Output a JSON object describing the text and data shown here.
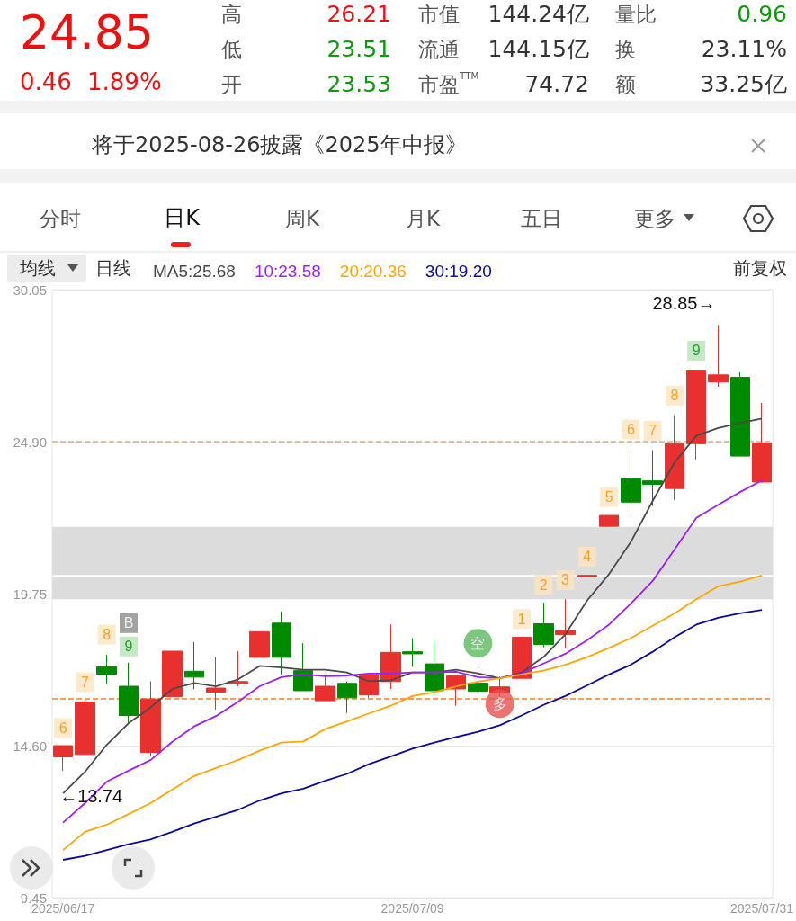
{
  "chart_data": {
    "type": "candlestick",
    "categories": [
      "2025/06/17",
      null,
      null,
      null,
      null,
      null,
      null,
      null,
      null,
      null,
      null,
      null,
      null,
      null,
      null,
      null,
      "2025/07/09",
      null,
      null,
      null,
      null,
      null,
      null,
      null,
      null,
      null,
      null,
      null,
      null,
      null,
      null,
      null,
      "2025/07/31"
    ],
    "ohlc": [
      [
        14.22,
        14.6,
        13.74,
        14.6
      ],
      [
        14.3,
        16.15,
        14.3,
        16.08
      ],
      [
        17.27,
        17.67,
        16.71,
        17.01
      ],
      [
        16.61,
        17.41,
        15.36,
        15.62
      ],
      [
        14.37,
        16.78,
        14.23,
        16.18
      ],
      [
        16.26,
        17.8,
        16.26,
        17.8
      ],
      [
        17.12,
        18.11,
        16.51,
        16.92
      ],
      [
        16.41,
        17.6,
        15.82,
        16.55
      ],
      [
        16.71,
        17.8,
        16.61,
        16.77
      ],
      [
        17.59,
        18.46,
        17.59,
        18.46
      ],
      [
        18.75,
        19.15,
        17.01,
        17.59
      ],
      [
        17.14,
        18.07,
        16.46,
        16.46
      ],
      [
        16.12,
        17.01,
        16.12,
        16.61
      ],
      [
        16.71,
        16.77,
        15.71,
        16.22
      ],
      [
        16.32,
        17.01,
        16.22,
        17.01
      ],
      [
        16.77,
        18.7,
        16.52,
        17.76
      ],
      [
        17.78,
        18.24,
        17.27,
        17.71
      ],
      [
        17.37,
        18.16,
        16.32,
        16.46
      ],
      [
        16.52,
        16.97,
        15.95,
        16.97
      ],
      [
        16.72,
        17.27,
        16.22,
        16.44
      ],
      [
        16.39,
        16.94,
        16.02,
        16.59
      ],
      [
        16.88,
        18.27,
        16.88,
        18.27
      ],
      [
        18.73,
        19.45,
        17.93,
        18.03
      ],
      [
        18.36,
        19.56,
        17.91,
        18.5
      ],
      [
        20.33,
        20.38,
        20.33,
        20.37
      ],
      [
        22.03,
        22.4,
        22.03,
        22.4
      ],
      [
        23.64,
        24.64,
        22.36,
        22.85
      ],
      [
        23.57,
        24.61,
        22.72,
        23.45
      ],
      [
        23.31,
        25.8,
        22.93,
        24.83
      ],
      [
        24.83,
        27.32,
        24.28,
        27.32
      ],
      [
        26.92,
        28.85,
        26.76,
        27.16
      ],
      [
        27.08,
        27.25,
        24.41,
        24.41
      ],
      [
        23.53,
        26.21,
        23.51,
        24.85
      ]
    ],
    "colors": [
      "#e8312f",
      "#e8312f",
      "#008a00",
      "#008a00",
      "#e8312f",
      "#e8312f",
      "#008a00",
      "#e8312f",
      "#e8312f",
      "#e8312f",
      "#008a00",
      "#008a00",
      "#e8312f",
      "#008a00",
      "#e8312f",
      "#e8312f",
      "#008a00",
      "#008a00",
      "#e8312f",
      "#008a00",
      "#e8312f",
      "#e8312f",
      "#008a00",
      "#e8312f",
      "#e8312f",
      "#e8312f",
      "#008a00",
      "#008a00",
      "#e8312f",
      "#e8312f",
      "#e8312f",
      "#008a00",
      "#e8312f"
    ],
    "series": [
      {
        "type": "line",
        "name": "MA5:25.68",
        "color": "#4a4a4a",
        "marker": "none",
        "values": [
          12.98,
          13.71,
          14.63,
          15.36,
          15.89,
          16.52,
          16.72,
          16.61,
          16.84,
          17.3,
          17.25,
          17.17,
          17.17,
          17.08,
          16.78,
          16.81,
          17.08,
          17.08,
          17.17,
          17.05,
          16.88,
          17.08,
          17.6,
          18.37,
          19.52,
          20.41,
          21.5,
          22.89,
          24.19,
          25.1,
          25.36,
          25.53,
          25.68
        ]
      },
      {
        "type": "line",
        "name": "10:23.58",
        "color": "#9b1fff",
        "marker": "none",
        "values": [
          11.99,
          12.65,
          13.38,
          13.75,
          14.11,
          14.73,
          15.25,
          15.6,
          16.08,
          16.61,
          16.92,
          17.01,
          16.95,
          16.97,
          17.04,
          17.04,
          17.08,
          17.08,
          17.1,
          16.92,
          16.88,
          17.05,
          17.38,
          17.71,
          18.17,
          18.7,
          19.41,
          20.18,
          21.24,
          22.32,
          22.76,
          23.19,
          23.58
        ]
      },
      {
        "type": "line",
        "name": "20:20.36",
        "color": "#ffa500",
        "marker": "none",
        "values": [
          11.06,
          11.68,
          11.92,
          12.28,
          12.65,
          13.11,
          13.57,
          13.84,
          14.11,
          14.43,
          14.7,
          14.74,
          15.16,
          15.42,
          15.69,
          15.95,
          16.28,
          16.41,
          16.61,
          16.77,
          16.88,
          17.01,
          17.14,
          17.34,
          17.6,
          17.91,
          18.24,
          18.66,
          19.08,
          19.56,
          20.0,
          20.16,
          20.36
        ]
      },
      {
        "type": "line",
        "name": "30:19.20",
        "color": "#0a0a9a",
        "marker": "none",
        "values": [
          10.73,
          10.86,
          11.06,
          11.26,
          11.42,
          11.68,
          11.96,
          12.19,
          12.42,
          12.74,
          12.98,
          13.14,
          13.41,
          13.64,
          13.97,
          14.23,
          14.5,
          14.7,
          14.89,
          15.07,
          15.29,
          15.62,
          15.98,
          16.28,
          16.64,
          17.01,
          17.34,
          17.78,
          18.27,
          18.7,
          18.93,
          19.08,
          19.2
        ]
      },
      {
        "type": "scatter",
        "name": "6",
        "color": "#fde3bf",
        "marker": "square",
        "values": [
          15.2,
          null,
          null,
          null,
          null,
          null,
          null,
          null,
          null,
          null,
          null,
          null,
          null,
          null,
          null,
          null,
          null,
          null,
          null,
          null,
          null,
          null,
          null,
          null,
          null,
          null,
          25.31,
          null,
          null,
          null,
          null,
          null,
          null
        ]
      },
      {
        "type": "scatter",
        "name": "7",
        "color": "#fde3bf",
        "marker": "square",
        "values": [
          null,
          16.75,
          null,
          null,
          null,
          null,
          null,
          null,
          null,
          null,
          null,
          null,
          null,
          null,
          null,
          null,
          null,
          null,
          null,
          null,
          null,
          null,
          null,
          null,
          null,
          null,
          null,
          25.27,
          null,
          null,
          null,
          null,
          null
        ]
      },
      {
        "type": "scatter",
        "name": "8",
        "color": "#fde3bf",
        "marker": "square",
        "values": [
          null,
          null,
          18.36,
          null,
          null,
          null,
          null,
          null,
          null,
          null,
          null,
          null,
          null,
          null,
          null,
          null,
          null,
          null,
          null,
          null,
          null,
          null,
          null,
          null,
          null,
          null,
          null,
          null,
          26.46,
          null,
          null,
          null,
          null
        ]
      },
      {
        "type": "scatter",
        "name": "1",
        "color": "#fde3bf",
        "marker": "square",
        "values": [
          null,
          null,
          null,
          null,
          null,
          null,
          null,
          null,
          null,
          null,
          null,
          null,
          null,
          null,
          null,
          null,
          null,
          null,
          null,
          null,
          null,
          18.89,
          null,
          null,
          null,
          null,
          null,
          null,
          null,
          null,
          null,
          null,
          null
        ]
      },
      {
        "type": "scatter",
        "name": "2",
        "color": "#fde3bf",
        "marker": "square",
        "values": [
          null,
          null,
          null,
          null,
          null,
          null,
          null,
          null,
          null,
          null,
          null,
          null,
          null,
          null,
          null,
          null,
          null,
          null,
          null,
          null,
          null,
          null,
          20.05,
          null,
          null,
          null,
          null,
          null,
          null,
          null,
          null,
          null,
          null
        ]
      },
      {
        "type": "scatter",
        "name": "3",
        "color": "#fde3bf",
        "marker": "square",
        "values": [
          null,
          null,
          null,
          null,
          null,
          null,
          null,
          null,
          null,
          null,
          null,
          null,
          null,
          null,
          null,
          null,
          null,
          null,
          null,
          null,
          null,
          null,
          null,
          20.21,
          null,
          null,
          null,
          null,
          null,
          null,
          null,
          null,
          null
        ]
      },
      {
        "type": "scatter",
        "name": "4",
        "color": "#fde3bf",
        "marker": "square",
        "values": [
          null,
          null,
          null,
          null,
          null,
          null,
          null,
          null,
          null,
          null,
          null,
          null,
          null,
          null,
          null,
          null,
          null,
          null,
          null,
          null,
          null,
          null,
          null,
          null,
          21.0,
          null,
          null,
          null,
          null,
          null,
          null,
          null,
          null
        ]
      },
      {
        "type": "scatter",
        "name": "5",
        "color": "#fde3bf",
        "marker": "square",
        "values": [
          null,
          null,
          null,
          null,
          null,
          null,
          null,
          null,
          null,
          null,
          null,
          null,
          null,
          null,
          null,
          null,
          null,
          null,
          null,
          null,
          null,
          null,
          null,
          null,
          null,
          23.02,
          null,
          null,
          null,
          null,
          null,
          null,
          null
        ]
      },
      {
        "type": "scatter",
        "name": "9",
        "color": "#b9e2b9",
        "marker": "square",
        "values": [
          null,
          null,
          null,
          17.96,
          null,
          null,
          null,
          null,
          null,
          null,
          null,
          null,
          null,
          null,
          null,
          null,
          null,
          null,
          null,
          null,
          null,
          null,
          null,
          null,
          null,
          null,
          null,
          null,
          null,
          27.98,
          null,
          null,
          null
        ]
      },
      {
        "type": "scatter",
        "name": "B",
        "color": "#8c8c8c",
        "marker": "square",
        "values": [
          null,
          null,
          null,
          18.75,
          null,
          null,
          null,
          null,
          null,
          null,
          null,
          null,
          null,
          null,
          null,
          null,
          null,
          null,
          null,
          null,
          null,
          null,
          null,
          null,
          null,
          null,
          null,
          null,
          null,
          null,
          null,
          null,
          null
        ]
      },
      {
        "type": "scatter",
        "name": "空",
        "color": "#5cb85c",
        "marker": "circle",
        "values": [
          null,
          null,
          null,
          null,
          null,
          null,
          null,
          null,
          null,
          null,
          null,
          null,
          null,
          null,
          null,
          null,
          null,
          null,
          null,
          18.07,
          null,
          null,
          null,
          null,
          null,
          null,
          null,
          null,
          null,
          null,
          null,
          null,
          null
        ]
      },
      {
        "type": "scatter",
        "name": "多",
        "color": "#e85050",
        "marker": "circle",
        "values": [
          null,
          null,
          null,
          null,
          null,
          null,
          null,
          null,
          null,
          null,
          null,
          null,
          null,
          null,
          null,
          null,
          null,
          null,
          null,
          null,
          16.02,
          null,
          null,
          null,
          null,
          null,
          null,
          null,
          null,
          null,
          null,
          null,
          null
        ]
      }
    ],
    "ylim": [
      9.45,
      30.05
    ],
    "yticks": [
      9.45,
      {
        "value": 14.6,
        "label": "14.60"
      },
      19.75,
      {
        "value": 24.9,
        "label": "24.90"
      },
      30.05
    ],
    "grid": "y",
    "legend": "top left",
    "ref_lines": [
      {
        "axis": "y",
        "value": 24.9,
        "color": "#d2b48c",
        "line_style": "dashed"
      },
      {
        "axis": "y",
        "value": 16.18,
        "color": "#ff7f1e",
        "line_style": "dashed"
      }
    ],
    "bands": [
      {
        "axis": "y",
        "from": 20.38,
        "to": 22.01,
        "color": "#dcdcdc"
      },
      {
        "axis": "y",
        "from": 19.56,
        "to": 20.31,
        "color": "#dcdcdc"
      }
    ],
    "annotations": [
      "24.85",
      "0.46",
      "1.89%",
      "高",
      "26.21",
      "低",
      "23.51",
      "开",
      "23.53",
      "市值",
      "144.24亿",
      "流通",
      "144.15亿",
      "市盈$^{TTM}$",
      "74.72",
      "量比",
      "0.96",
      "换",
      "23.11%",
      "额",
      "33.25亿",
      "将于2025-08-26披露《2025年中报》",
      "分时",
      "日K",
      "周K",
      "月K",
      "五日",
      "更多",
      "均线",
      "日线",
      "前复权",
      "28.85→",
      "←13.74"
    ]
  }
}
